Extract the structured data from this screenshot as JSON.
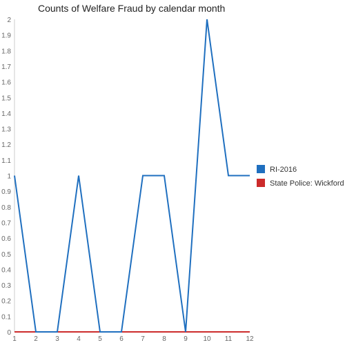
{
  "chart_data": {
    "type": "line",
    "title": "Counts of Welfare Fraud by calendar month",
    "x": [
      1,
      2,
      3,
      4,
      5,
      6,
      7,
      8,
      9,
      10,
      11,
      12
    ],
    "x_tick_labels": [
      "1",
      "2",
      "3",
      "4",
      "5",
      "6",
      "7",
      "8",
      "9",
      "10",
      "11",
      "12"
    ],
    "y_tick_labels": [
      "0",
      "0.1",
      "0.2",
      "0.3",
      "0.4",
      "0.5",
      "0.6",
      "0.7",
      "0.8",
      "0.9",
      "1",
      "1.1",
      "1.2",
      "1.3",
      "1.4",
      "1.5",
      "1.6",
      "1.7",
      "1.8",
      "1.9",
      "2"
    ],
    "ylim": [
      0,
      2
    ],
    "xlim": [
      1,
      12
    ],
    "grid": false,
    "legend_position": "right",
    "series": [
      {
        "name": "RI-2016",
        "color": "#1f6fbf",
        "values": [
          1,
          0,
          0,
          1,
          0,
          0,
          1,
          1,
          0,
          2,
          1,
          1
        ]
      },
      {
        "name": "State Police: Wickford",
        "color": "#cc2b2b",
        "values": [
          0,
          0,
          0,
          0,
          0,
          0,
          0,
          0,
          0,
          0,
          0,
          0
        ]
      }
    ]
  }
}
